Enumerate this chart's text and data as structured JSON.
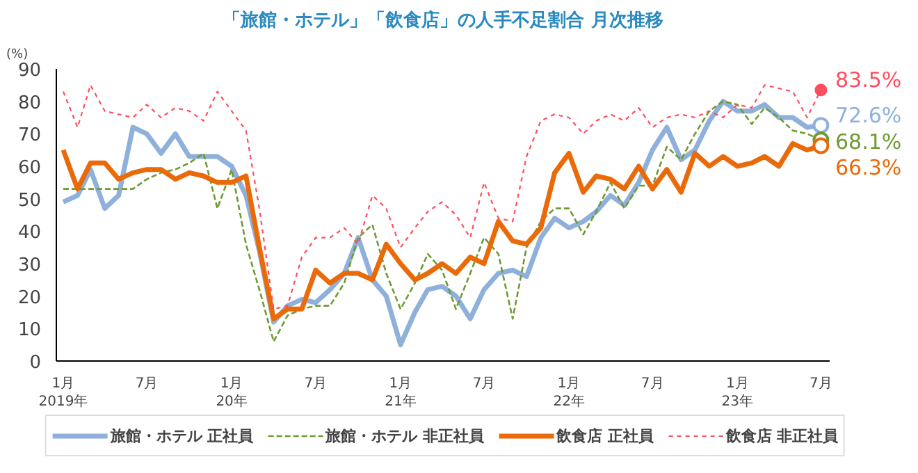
{
  "chart_data": {
    "type": "line",
    "title": "「旅館・ホテル」「飲食店」の人手不足割合 月次推移",
    "ylabel": "(%)",
    "x": [
      "2019-01",
      "2019-02",
      "2019-03",
      "2019-04",
      "2019-05",
      "2019-06",
      "2019-07",
      "2019-08",
      "2019-09",
      "2019-10",
      "2019-11",
      "2019-12",
      "2020-01",
      "2020-02",
      "2020-03",
      "2020-04",
      "2020-05",
      "2020-06",
      "2020-07",
      "2020-08",
      "2020-09",
      "2020-10",
      "2020-11",
      "2020-12",
      "2021-01",
      "2021-02",
      "2021-03",
      "2021-04",
      "2021-05",
      "2021-06",
      "2021-07",
      "2021-08",
      "2021-09",
      "2021-10",
      "2021-11",
      "2021-12",
      "2022-01",
      "2022-02",
      "2022-03",
      "2022-04",
      "2022-05",
      "2022-06",
      "2022-07",
      "2022-08",
      "2022-09",
      "2022-10",
      "2022-11",
      "2022-12",
      "2023-01",
      "2023-02",
      "2023-03",
      "2023-04",
      "2023-05",
      "2023-06",
      "2023-07"
    ],
    "series": [
      {
        "name": "旅館・ホテル 正社員",
        "color": "#8eb0db",
        "line_style": "solid",
        "values": [
          49,
          51,
          59,
          47,
          51,
          72,
          70,
          64,
          70,
          63,
          63,
          63,
          60,
          51,
          34,
          12,
          17,
          19,
          18,
          22,
          27,
          38,
          25,
          20,
          5,
          15,
          22,
          23,
          20,
          13,
          22,
          27,
          28,
          26,
          38,
          44,
          41,
          43,
          46,
          51,
          48,
          55,
          65,
          72,
          62,
          65,
          74,
          80,
          77,
          77,
          79,
          75,
          75,
          72,
          72.6
        ]
      },
      {
        "name": "旅館・ホテル 非正社員",
        "color": "#6f9a35",
        "line_style": "dashed",
        "values": [
          53,
          53,
          53,
          53,
          53,
          53,
          56,
          58,
          59,
          61,
          64,
          47,
          59,
          36,
          22,
          6,
          14,
          16,
          17,
          17,
          24,
          38,
          42,
          27,
          16,
          24,
          33,
          28,
          16,
          27,
          38,
          33,
          13,
          35,
          43,
          47,
          47,
          39,
          46,
          55,
          47,
          54,
          54,
          66,
          62,
          70,
          77,
          80,
          79,
          73,
          78,
          75,
          71,
          70,
          68.1
        ]
      },
      {
        "name": "飲食店 正社員",
        "color": "#ea6a0a",
        "line_style": "solid",
        "values": [
          65,
          53,
          61,
          61,
          56,
          58,
          59,
          59,
          56,
          58,
          57,
          55,
          55,
          57,
          35,
          13,
          16,
          16,
          28,
          24,
          27,
          27,
          25,
          36,
          30,
          25,
          27,
          30,
          27,
          32,
          30,
          43,
          37,
          36,
          41,
          58,
          64,
          52,
          57,
          56,
          53,
          60,
          53,
          59,
          52,
          64,
          60,
          63,
          60,
          61,
          63,
          60,
          67,
          65,
          66.3
        ]
      },
      {
        "name": "飲食店 非正社員",
        "color": "#ff4d5e",
        "line_style": "dotted",
        "values": [
          83,
          72,
          85,
          77,
          76,
          75,
          79,
          75,
          78,
          77,
          74,
          83,
          77,
          71,
          47,
          16,
          17,
          32,
          38,
          38,
          41,
          36,
          51,
          47,
          35,
          41,
          46,
          49,
          45,
          38,
          55,
          44,
          43,
          63,
          74,
          76,
          75,
          70,
          74,
          76,
          74,
          78,
          72,
          75,
          76,
          75,
          77,
          75,
          79,
          78,
          85,
          84,
          83,
          75,
          83.5
        ]
      }
    ],
    "annotations": [
      {
        "text": "72.6%",
        "x": "2023-07",
        "y": 72.6
      },
      {
        "text": "68.1%",
        "x": "2023-07",
        "y": 68.1
      },
      {
        "text": "66.3%",
        "x": "2023-07",
        "y": 66.3
      },
      {
        "text": "83.5%",
        "x": "2023-07",
        "y": 83.5
      }
    ],
    "xlim": [
      "2018-12-17",
      "2023-07-20"
    ],
    "xticks": [
      {
        "value": "2019-01",
        "label": "1月\n2019年"
      },
      {
        "value": "2019-07",
        "label": "7月"
      },
      {
        "value": "2020-01",
        "label": "1月\n20年"
      },
      {
        "value": "2020-07",
        "label": "7月"
      },
      {
        "value": "2021-01",
        "label": "1月\n21年"
      },
      {
        "value": "2021-07",
        "label": "7月"
      },
      {
        "value": "2022-01",
        "label": "1月\n22年"
      },
      {
        "value": "2022-07",
        "label": "7月"
      },
      {
        "value": "2023-01",
        "label": "1月\n23年"
      },
      {
        "value": "2023-07",
        "label": "7月"
      }
    ],
    "ylim": [
      0,
      90
    ],
    "yticks": [
      0,
      10,
      20,
      30,
      40,
      50,
      60,
      70,
      80,
      90
    ],
    "grid": false,
    "legend": "bottom"
  }
}
